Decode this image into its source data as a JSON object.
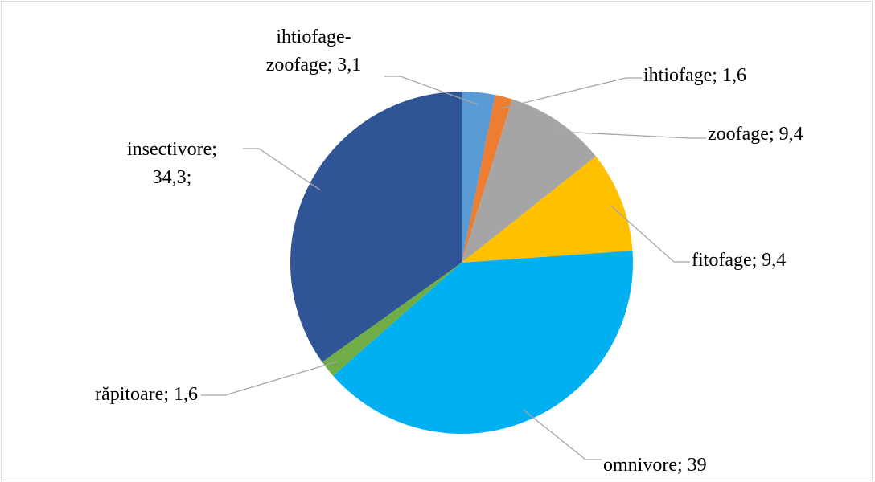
{
  "chart_data": {
    "type": "pie",
    "value_labels": [
      "ihtiofage-\nzoofage; 3,1",
      "ihtiofage; 1,6",
      "zoofage; 9,4",
      "fitofage;  9,4",
      "omnivore; 39",
      "răpitoare; 1,6",
      "insectivore;\n34,3;"
    ],
    "values": [
      3.1,
      1.6,
      9.4,
      9.4,
      39,
      1.6,
      34.3
    ],
    "colors": [
      "#5b9bd5",
      "#ed7d31",
      "#a5a5a5",
      "#ffc000",
      "#00b0f0",
      "#70ad47",
      "#2f5597"
    ]
  }
}
